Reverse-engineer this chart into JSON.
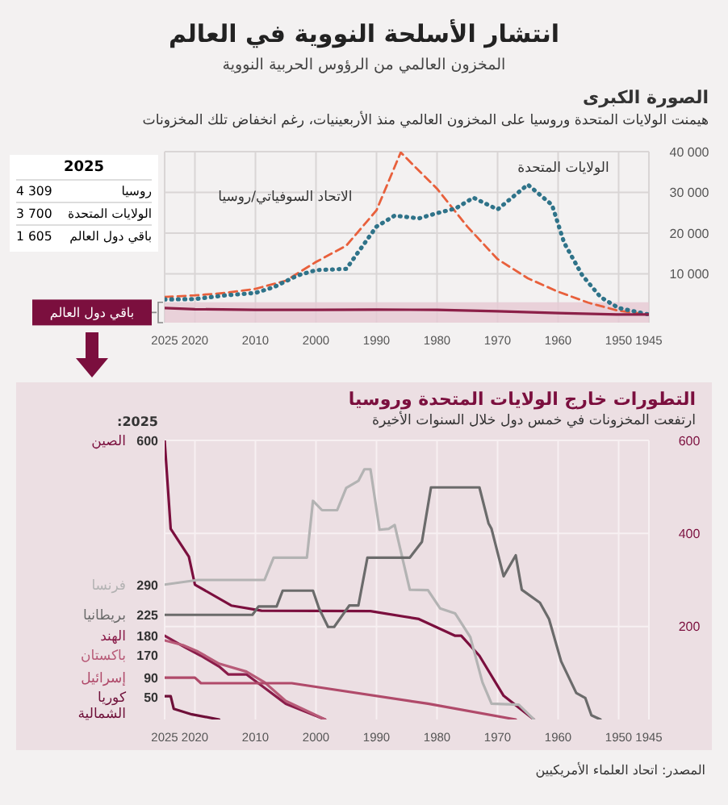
{
  "chart_data": [
    {
      "type": "line",
      "title": "انتشار الأسلحة النووية في العالم",
      "subtitle": "المخزون العالمي من الرؤوس الحربية النووية",
      "annotations": [
        "الصورة الكبرى",
        "هيمنت الولايات المتحدة وروسيا على المخزون العالمي منذ الأربعينيات، رغم انخفاض تلك المخزونات",
        "2025",
        "روسيا",
        "4 309",
        "الولايات المتحدة",
        "3 700",
        "باقي دول العالم",
        "1 605"
      ],
      "xlim": [
        2025,
        1945
      ],
      "xticks": [
        2025,
        2020,
        2010,
        2000,
        1990,
        1980,
        1970,
        1960,
        1950,
        1945
      ],
      "ylim": [
        -2000,
        40000
      ],
      "yticks": [
        {
          "value": 10000,
          "label": "10 000"
        },
        {
          "value": 20000,
          "label": "20 000"
        },
        {
          "value": 30000,
          "label": "30 000"
        },
        {
          "value": 40000,
          "label": "40 000"
        }
      ],
      "grid": true,
      "bands": [
        {
          "axis": "y",
          "from": -2000,
          "to": 3000,
          "label": "باقي دول العالم",
          "color": "#e6c9d3"
        }
      ],
      "series": [
        {
          "name": "الاتحاد السوفياتي/روسيا",
          "color": "#e8603c",
          "line_style": "dashed",
          "x": [
            2025,
            2020,
            2015,
            2010,
            2005,
            2000,
            1995,
            1990,
            1986,
            1980,
            1975,
            1970,
            1965,
            1960,
            1955,
            1950,
            1945
          ],
          "values": [
            4309,
            4700,
            5300,
            6300,
            8300,
            12900,
            16900,
            25600,
            39800,
            30900,
            21600,
            13600,
            8900,
            5600,
            2900,
            900,
            0
          ]
        },
        {
          "name": "الولايات المتحدة",
          "color": "#2f7389",
          "line_style": "dotted",
          "x": [
            2025,
            2020,
            2015,
            2010,
            2007,
            2003,
            2000,
            1995,
            1990,
            1987,
            1983,
            1980,
            1977,
            1974,
            1970,
            1965,
            1961,
            1959,
            1956,
            1953,
            1950,
            1945
          ],
          "values": [
            3700,
            3800,
            4700,
            5300,
            6700,
            9600,
            10900,
            11200,
            21600,
            24300,
            23600,
            24900,
            26000,
            28700,
            25800,
            31900,
            26900,
            17600,
            9600,
            4300,
            1600,
            0
          ]
        },
        {
          "color": "#8c2048",
          "line_style": "solid",
          "x": [
            2025,
            2020,
            2010,
            2000,
            1990,
            1980,
            1970,
            1960,
            1950,
            1945
          ],
          "values": [
            1605,
            1300,
            1150,
            1150,
            1200,
            1150,
            800,
            350,
            0,
            0
          ]
        }
      ]
    },
    {
      "type": "line",
      "title": "التطورات خارج الولايات المتحدة وروسيا",
      "subtitle": "ارتفعت المخزونات في خمس دول خلال السنوات الأخيرة",
      "annotations": [
        "2025:",
        "المصدر: اتحاد العلماء الأمريكيين"
      ],
      "xlim": [
        2025,
        1945
      ],
      "xticks": [
        2025,
        2020,
        2010,
        2000,
        1990,
        1980,
        1970,
        1960,
        1950,
        1945
      ],
      "ylim": [
        0,
        600
      ],
      "yticks": [
        200,
        400,
        600
      ],
      "grid": true,
      "series": [
        {
          "name": "الصين",
          "color": "#7b0f3e",
          "line_style": "solid",
          "x": [
            2025,
            2024,
            2021,
            2020,
            2014,
            2009,
            1991,
            1983,
            1977,
            1976,
            1973,
            1969,
            1964
          ],
          "values": [
            600,
            410,
            350,
            290,
            245,
            234,
            233,
            216,
            180,
            180,
            137,
            51,
            0
          ],
          "value_labels": [
            "600",
            null,
            null,
            null,
            null,
            null,
            null,
            null,
            null,
            null,
            null,
            null,
            null
          ]
        },
        {
          "name": "فرنسا",
          "color": "#b3b3b3",
          "line_style": "solid",
          "x": [
            2025,
            2019.5,
            2008.5,
            2007,
            2001.5,
            2000.5,
            1999,
            1996.5,
            1995,
            1993,
            1992,
            1991,
            1989.5,
            1988,
            1987,
            1984.5,
            1981.5,
            1979.5,
            1977,
            1974.5,
            1972.5,
            1971,
            1966.5,
            1964
          ],
          "values": [
            290,
            300,
            300,
            348,
            348,
            470,
            450,
            450,
            498,
            513,
            538,
            538,
            408,
            410,
            418,
            279,
            278,
            239,
            228,
            177,
            80,
            34,
            32,
            0
          ],
          "value_labels": [
            "290",
            null,
            null,
            null,
            null,
            null,
            null,
            null,
            null,
            null,
            null,
            null,
            null,
            null,
            null,
            null,
            null,
            null,
            null,
            null,
            null,
            null,
            null,
            null
          ]
        },
        {
          "name": "بريطانيا",
          "color": "#6b6b6b",
          "line_style": "solid",
          "x": [
            2025,
            2010.5,
            2009.5,
            2006.5,
            2005.5,
            2000.5,
            1999.5,
            1998,
            1997,
            1994.5,
            1993,
            1991.5,
            1984.5,
            1982.5,
            1981,
            1973,
            1971.5,
            1971,
            1969,
            1967,
            1966,
            1963,
            1961.5,
            1959.5,
            1957,
            1955.5,
            1954.5,
            1953
          ],
          "values": [
            225,
            225,
            243,
            243,
            277,
            277,
            239,
            199,
            199,
            245,
            245,
            348,
            348,
            382,
            499,
            499,
            422,
            410,
            308,
            353,
            279,
            251,
            216,
            125,
            57,
            46,
            9,
            0
          ],
          "value_labels": [
            "225",
            null,
            null,
            null,
            null,
            null,
            null,
            null,
            null,
            null,
            null,
            null,
            null,
            null,
            null,
            null,
            null,
            null,
            null,
            null,
            null,
            null,
            null,
            null,
            null,
            null,
            null,
            null
          ]
        },
        {
          "name": "الهند",
          "color": "#8a1c4a",
          "line_style": "solid",
          "x": [
            2025,
            2021.5,
            2019,
            2016,
            2014.5,
            2011.5,
            2008.5,
            2005,
            1998.5
          ],
          "values": [
            180,
            154,
            137,
            114,
            97,
            97,
            68,
            34,
            0
          ],
          "value_labels": [
            "180",
            null,
            null,
            null,
            null,
            null,
            null,
            null,
            null
          ]
        },
        {
          "name": "باكستان",
          "color": "#b85b78",
          "line_style": "solid",
          "x": [
            2025,
            2022,
            2019.5,
            2016,
            2011.5,
            2008.5,
            2005,
            1998.5
          ],
          "values": [
            170,
            160,
            146,
            120,
            103,
            80,
            40,
            0
          ],
          "value_labels": [
            "170",
            null,
            null,
            null,
            null,
            null,
            null,
            null
          ]
        },
        {
          "name": "إسرائيل",
          "color": "#b04a6a",
          "line_style": "solid",
          "x": [
            2025,
            2020,
            2019,
            2004,
            1981.5,
            1967
          ],
          "values": [
            90,
            90,
            78,
            78,
            34,
            0
          ],
          "value_labels": [
            "90",
            null,
            null,
            null,
            null,
            null
          ]
        },
        {
          "name": "كوريا الشمالية",
          "color": "#6e0f38",
          "line_style": "solid",
          "x": [
            2025,
            2024,
            2023.5,
            2020.5,
            2016
          ],
          "values": [
            50,
            50,
            23,
            11,
            0
          ],
          "value_labels": [
            "50",
            null,
            null,
            null,
            null
          ]
        }
      ]
    }
  ]
}
